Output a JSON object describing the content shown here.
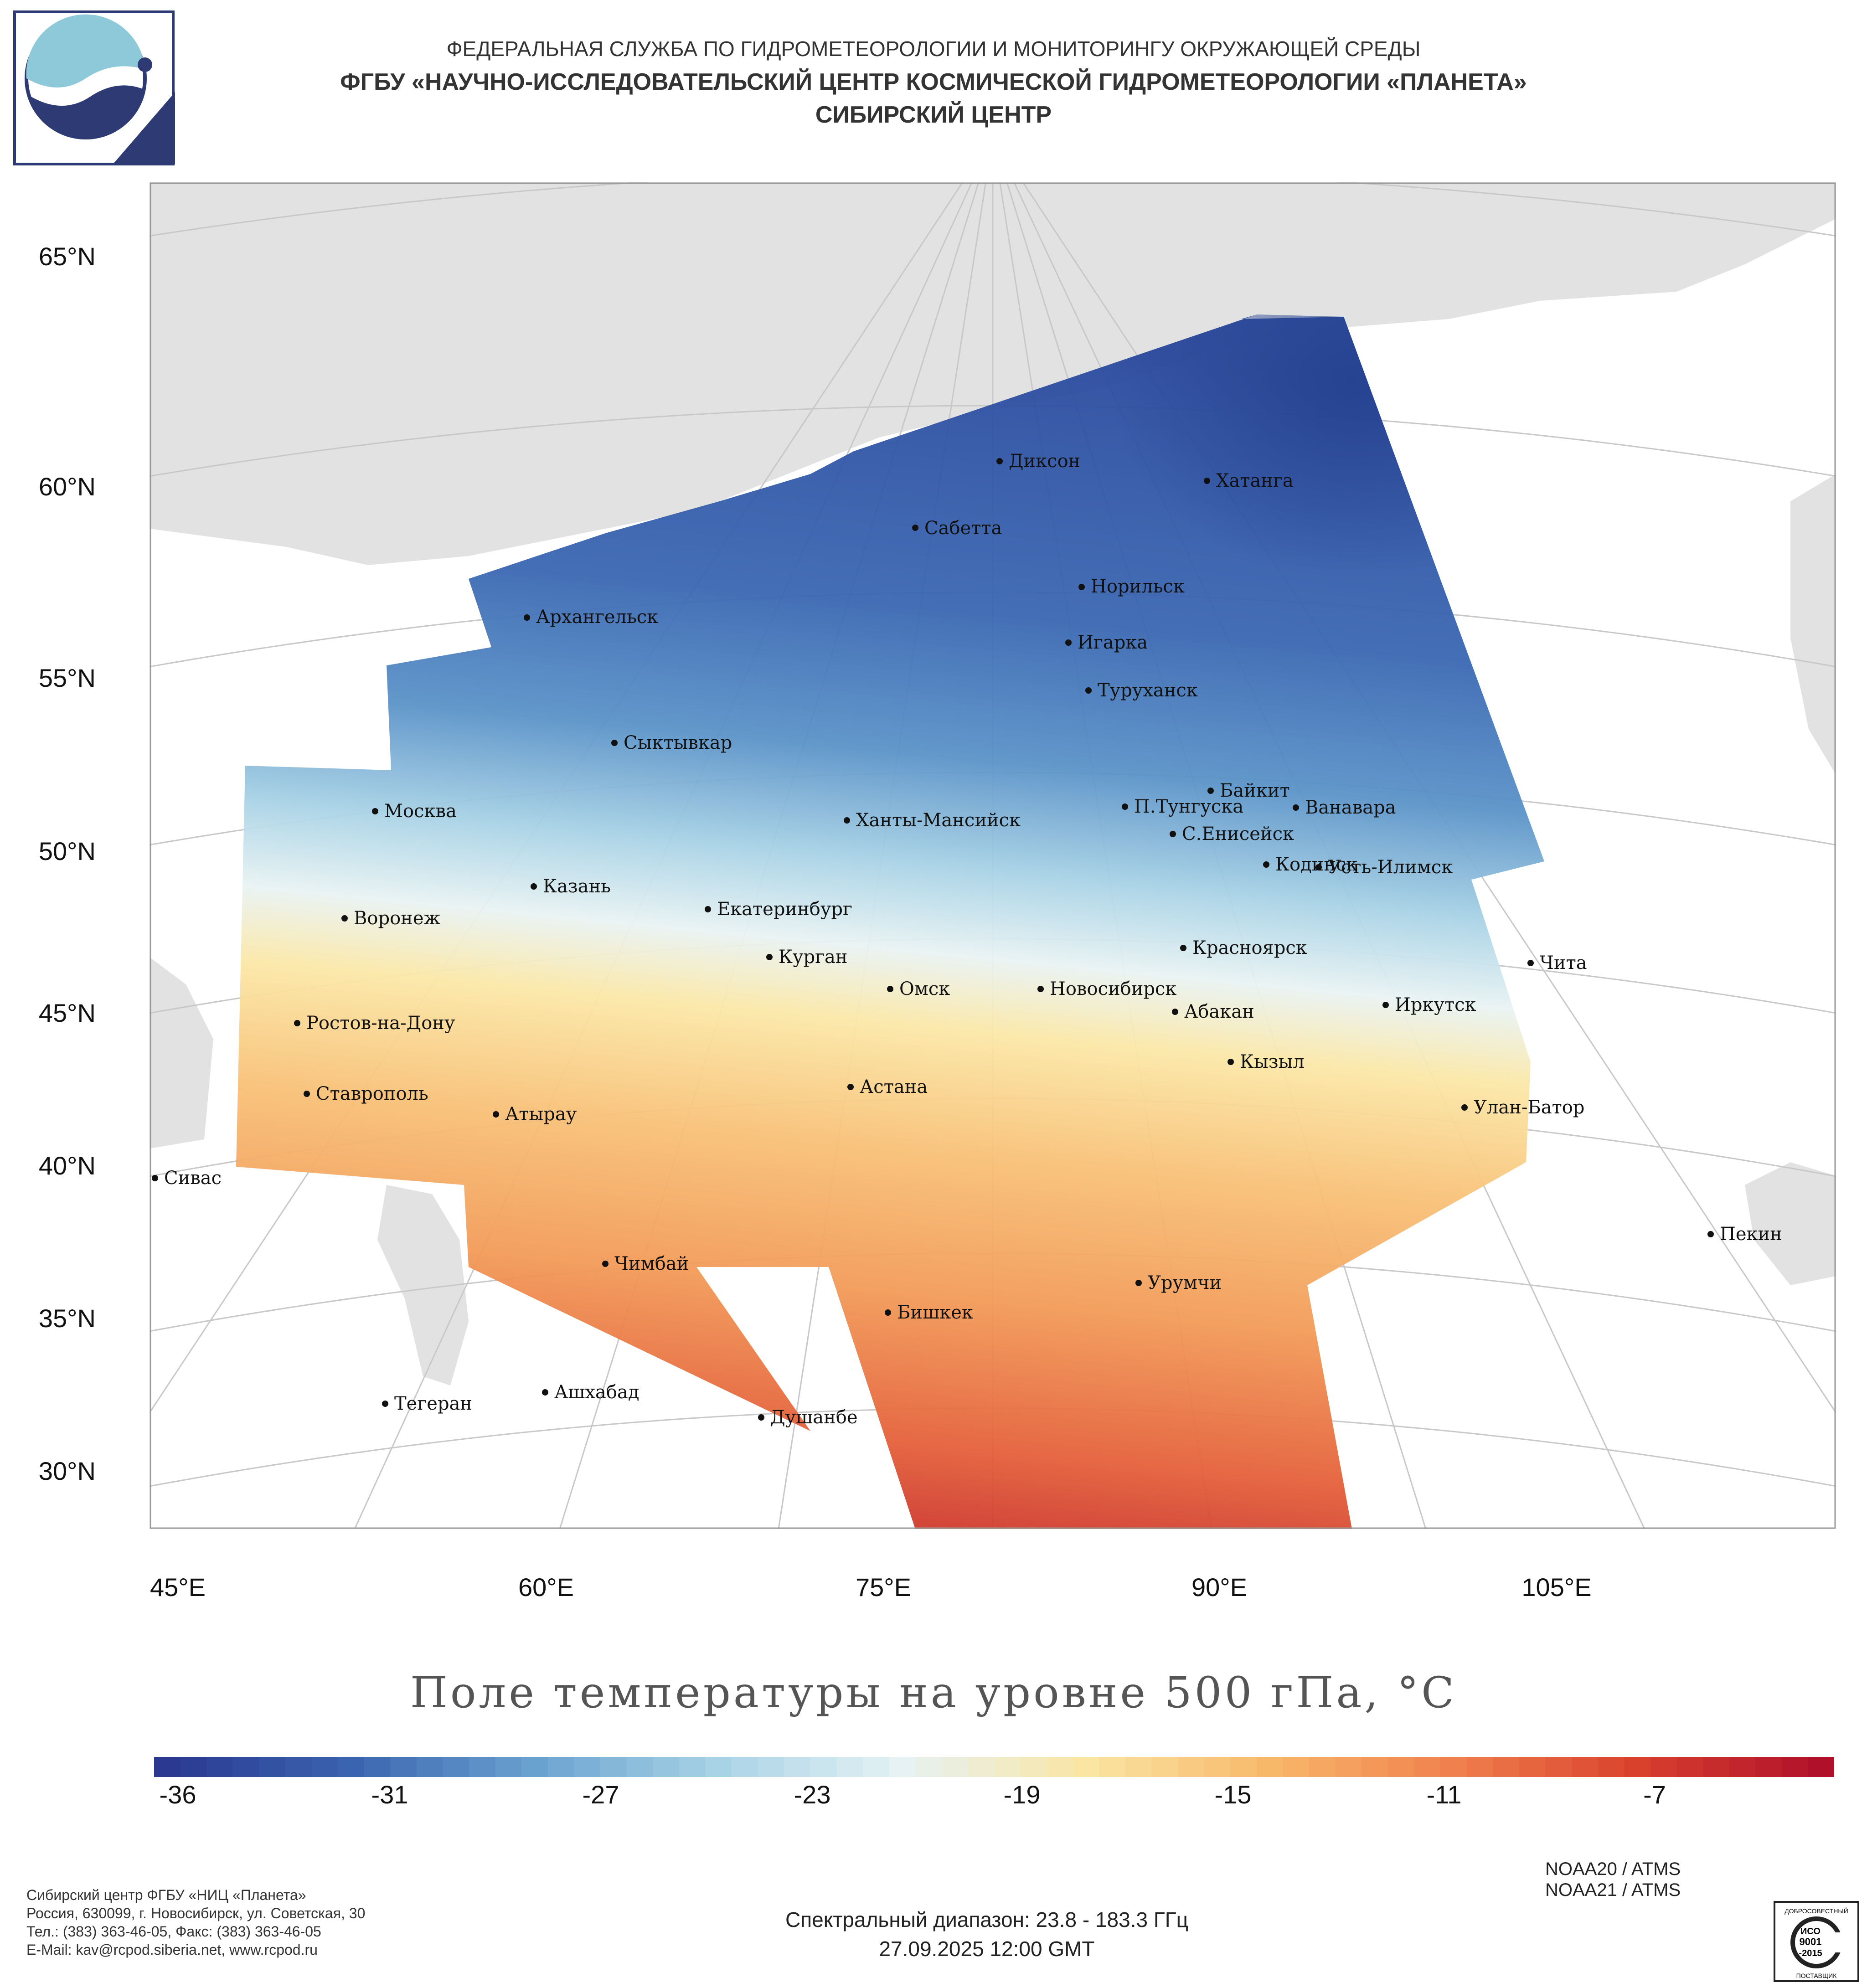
{
  "header": {
    "line1": "ФЕДЕРАЛЬНАЯ СЛУЖБА ПО ГИДРОМЕТЕОРОЛОГИИ И МОНИТОРИНГУ ОКРУЖАЮЩЕЙ СРЕДЫ",
    "line2": "ФГБУ «НАУЧНО-ИССЛЕДОВАТЕЛЬСКИЙ ЦЕНТР КОСМИЧЕСКОЙ ГИДРОМЕТЕОРОЛОГИИ «ПЛАНЕТА»",
    "line3": "СИБИРСКИЙ ЦЕНТР"
  },
  "map": {
    "lat_labels": [
      "65°N",
      "60°N",
      "55°N",
      "50°N",
      "45°N",
      "40°N",
      "35°N",
      "30°N"
    ],
    "lon_labels": [
      "45°E",
      "60°E",
      "75°E",
      "90°E",
      "105°E"
    ],
    "land_color": "#e2e2e2",
    "sea_color": "#ffffff",
    "cities": [
      {
        "name": "Диксон"
      },
      {
        "name": "Хатанга"
      },
      {
        "name": "Сабетта"
      },
      {
        "name": "Норильск"
      },
      {
        "name": "Архангельск"
      },
      {
        "name": "Игарка"
      },
      {
        "name": "Туруханск"
      },
      {
        "name": "Сыктывкар"
      },
      {
        "name": "Байкит"
      },
      {
        "name": "П.Тунгуска"
      },
      {
        "name": "Ванавара"
      },
      {
        "name": "Москва"
      },
      {
        "name": "Ханты-Мансийск"
      },
      {
        "name": "С.Енисейск"
      },
      {
        "name": "Кодинск"
      },
      {
        "name": "Усть-Илимск"
      },
      {
        "name": "Казань"
      },
      {
        "name": "Екатеринбург"
      },
      {
        "name": "Воронеж"
      },
      {
        "name": "Красноярск"
      },
      {
        "name": "Курган"
      },
      {
        "name": "Чита"
      },
      {
        "name": "Омск"
      },
      {
        "name": "Новосибирск"
      },
      {
        "name": "Иркутск"
      },
      {
        "name": "Абакан"
      },
      {
        "name": "Ростов-на-Дону"
      },
      {
        "name": "Кызыл"
      },
      {
        "name": "Ставрополь"
      },
      {
        "name": "Астана"
      },
      {
        "name": "Улан-Батор"
      },
      {
        "name": "Атырау"
      },
      {
        "name": "Сивас"
      },
      {
        "name": "Пекин"
      },
      {
        "name": "Чимбай"
      },
      {
        "name": "Урумчи"
      },
      {
        "name": "Бишкек"
      },
      {
        "name": "Ашхабад"
      },
      {
        "name": "Тегеран"
      },
      {
        "name": "Душанбе"
      }
    ]
  },
  "title": "Поле температуры на уровне 500 гПа, °С",
  "colorbar": {
    "labels": [
      "-36",
      "-31",
      "-27",
      "-23",
      "-19",
      "-15",
      "-11",
      "-7"
    ],
    "min": -37,
    "max": -3,
    "stops": [
      "#2b3990",
      "#3a64b0",
      "#6aa2cf",
      "#a8d3e6",
      "#e6f2f4",
      "#fae5a3",
      "#f8b86a",
      "#f0804d",
      "#d9412d",
      "#b0102a"
    ]
  },
  "footer": {
    "left": [
      "Сибирский центр ФГБУ «НИЦ «Планета»",
      "Россия, 630099, г. Новосибирск, ул. Советская, 30",
      "Тел.: (383) 363-46-05, Факс: (383) 363-46-05",
      "E-Mail: kav@rcpod.siberia.net, www.rcpod.ru"
    ],
    "satellites": [
      "NOAA20 / ATMS",
      "NOAA21 / ATMS"
    ],
    "spectral": "Спектральный диапазон: 23.8 - 183.3 ГГц",
    "datetime": "27.09.2025 12:00 GMT",
    "iso": {
      "top": "ДОБРОСОВЕСТНЫЙ",
      "mid1": "ИСО",
      "mid2": "9001",
      "mid3": "-2015",
      "bottom": "ПОСТАВЩИК"
    }
  }
}
